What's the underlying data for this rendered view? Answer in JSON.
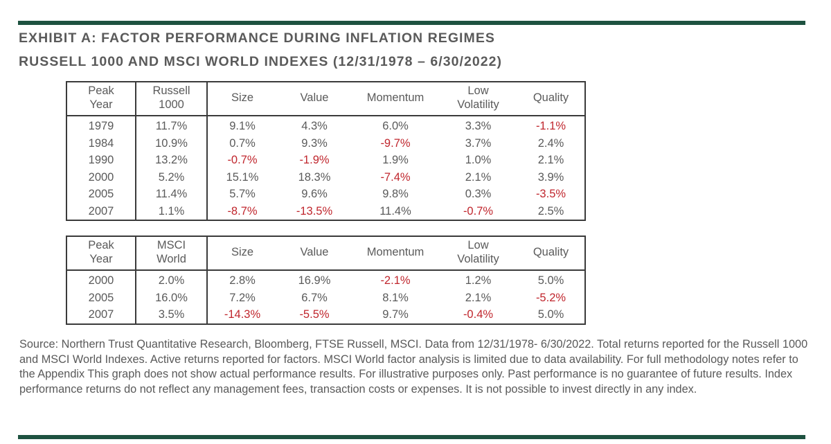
{
  "title_line1": "EXHIBIT A: FACTOR PERFORMANCE DURING INFLATION REGIMES",
  "title_line2": "RUSSELL 1000 AND MSCI WORLD INDEXES (12/31/1978 – 6/30/2022)",
  "colors": {
    "accent_rule": "#1e5240",
    "negative": "#c0262d",
    "text": "#595959"
  },
  "chart_data": [
    {
      "type": "table",
      "title": "Russell 1000",
      "columns": [
        "Peak Year",
        "Russell 1000",
        "Size",
        "Value",
        "Momentum",
        "Low Volatility",
        "Quality"
      ],
      "header_lines": [
        [
          "Peak",
          "Year"
        ],
        [
          "Russell",
          "1000"
        ],
        [
          "Size"
        ],
        [
          "Value"
        ],
        [
          "Momentum"
        ],
        [
          "Low",
          "Volatility"
        ],
        [
          "Quality"
        ]
      ],
      "rows": [
        [
          "1979",
          "11.7%",
          "9.1%",
          "4.3%",
          "6.0%",
          "3.3%",
          "-1.1%"
        ],
        [
          "1984",
          "10.9%",
          "0.7%",
          "9.3%",
          "-9.7%",
          "3.7%",
          "2.4%"
        ],
        [
          "1990",
          "13.2%",
          "-0.7%",
          "-1.9%",
          "1.9%",
          "1.0%",
          "2.1%"
        ],
        [
          "2000",
          "5.2%",
          "15.1%",
          "18.3%",
          "-7.4%",
          "2.1%",
          "3.9%"
        ],
        [
          "2005",
          "11.4%",
          "5.7%",
          "9.6%",
          "9.8%",
          "0.3%",
          "-3.5%"
        ],
        [
          "2007",
          "1.1%",
          "-8.7%",
          "-13.5%",
          "11.4%",
          "-0.7%",
          "2.5%"
        ]
      ]
    },
    {
      "type": "table",
      "title": "MSCI World",
      "columns": [
        "Peak Year",
        "MSCI World",
        "Size",
        "Value",
        "Momentum",
        "Low Volatility",
        "Quality"
      ],
      "header_lines": [
        [
          "Peak",
          "Year"
        ],
        [
          "MSCI",
          "World"
        ],
        [
          "Size"
        ],
        [
          "Value"
        ],
        [
          "Momentum"
        ],
        [
          "Low",
          "Volatility"
        ],
        [
          "Quality"
        ]
      ],
      "rows": [
        [
          "2000",
          "2.0%",
          "2.8%",
          "16.9%",
          "-2.1%",
          "1.2%",
          "5.0%"
        ],
        [
          "2005",
          "16.0%",
          "7.2%",
          "6.7%",
          "8.1%",
          "2.1%",
          "-5.2%"
        ],
        [
          "2007",
          "3.5%",
          "-14.3%",
          "-5.5%",
          "9.7%",
          "-0.4%",
          "5.0%"
        ]
      ]
    }
  ],
  "source_note": "Source: Northern Trust Quantitative Research, Bloomberg, FTSE Russell, MSCI. Data from 12/31/1978- 6/30/2022. Total returns reported for the Russell 1000 and MSCI World Indexes.  Active returns reported for factors. MSCI World factor analysis is limited due to data availability. For full methodology notes refer to the Appendix This graph does not show actual performance results. For illustrative purposes only. Past performance is no guarantee of future results. Index performance returns do not reflect any management fees, transaction costs or expenses. It is not possible to invest directly in any index."
}
